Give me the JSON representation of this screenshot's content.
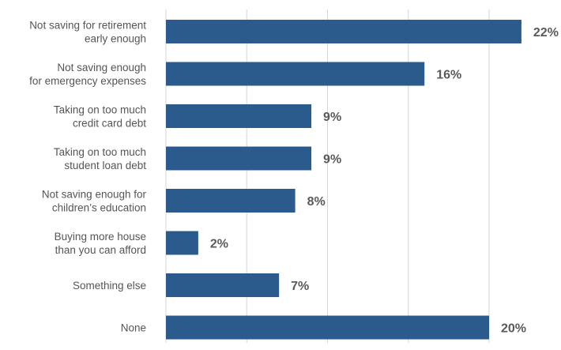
{
  "chart_data": {
    "type": "bar",
    "orientation": "horizontal",
    "title": "",
    "categories": [
      [
        "Not saving for retirement",
        "early enough"
      ],
      [
        "Not saving enough",
        "for emergency expenses"
      ],
      [
        "Taking on too much",
        "credit card debt"
      ],
      [
        "Taking on too much",
        "student loan debt"
      ],
      [
        "Not saving enough for",
        "children’s education"
      ],
      [
        "Buying more house",
        "than you can afford"
      ],
      [
        "Something else"
      ],
      [
        "None"
      ]
    ],
    "values": [
      22,
      16,
      9,
      9,
      8,
      2,
      7,
      20
    ],
    "value_labels": [
      "22%",
      "16%",
      "9%",
      "9%",
      "8%",
      "2%",
      "7%",
      "20%"
    ],
    "xlim": [
      0,
      22
    ],
    "grid": true,
    "legend": "none",
    "bar_color": "#2b5b8c",
    "value_label_color": "#5a5a5a",
    "category_label_color": "#555555",
    "gridline_color": "#d6d6d6"
  }
}
